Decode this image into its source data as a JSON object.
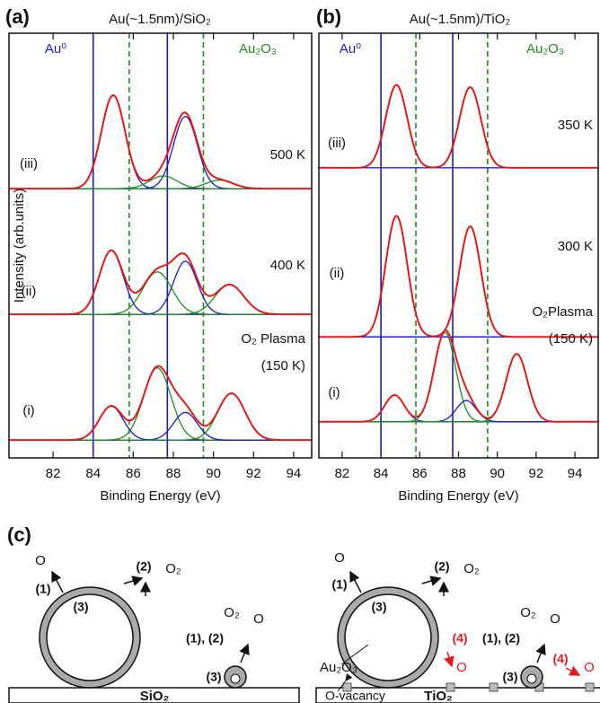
{
  "chart_data": [
    {
      "type": "xps",
      "panel": "(a)",
      "title": "Au(~1.5nm)/SiO₂",
      "x_label": "Binding Energy (eV)",
      "y_label": "Intensity (arb.units)",
      "xlim": [
        79.8,
        94.9
      ],
      "xticks": [
        82,
        84,
        86,
        88,
        90,
        92,
        94
      ],
      "ylim": [
        0,
        100
      ],
      "ref_lines": [
        {
          "label": "Au⁰",
          "color": "#1a1acc",
          "dashed": false,
          "positions": [
            84.0,
            87.7
          ]
        },
        {
          "label": "Au₂O₃",
          "color": "#1e8c1e",
          "dashed": true,
          "positions": [
            85.8,
            89.5
          ]
        }
      ],
      "fit_color": "#e01b1b",
      "series": [
        {
          "name": "(iii)",
          "annotation": [
            "500 K"
          ],
          "offset": 63.4,
          "components": [
            {
              "center": 85.0,
              "height": 22.0,
              "fwhm": 1.4,
              "color": "#1a1acc"
            },
            {
              "center": 88.6,
              "height": 17.0,
              "fwhm": 1.4,
              "color": "#1a1acc"
            },
            {
              "center": 87.5,
              "height": 3.0,
              "fwhm": 1.6,
              "color": "#1e8c1e"
            },
            {
              "center": 90.3,
              "height": 2.0,
              "fwhm": 1.6,
              "color": "#1e8c1e"
            }
          ]
        },
        {
          "name": "(ii)",
          "annotation": [
            "400 K"
          ],
          "offset": 33.8,
          "components": [
            {
              "center": 84.9,
              "height": 15.0,
              "fwhm": 1.4,
              "color": "#1a1acc"
            },
            {
              "center": 88.6,
              "height": 12.5,
              "fwhm": 1.4,
              "color": "#1a1acc"
            },
            {
              "center": 87.2,
              "height": 10.0,
              "fwhm": 1.7,
              "color": "#1e8c1e"
            },
            {
              "center": 90.8,
              "height": 7.0,
              "fwhm": 1.7,
              "color": "#1e8c1e"
            }
          ]
        },
        {
          "name": "(i)",
          "annotation": [
            "O₂ Plasma",
            "(150 K)"
          ],
          "offset": 4.2,
          "components": [
            {
              "center": 84.9,
              "height": 8.0,
              "fwhm": 1.4,
              "color": "#1a1acc"
            },
            {
              "center": 87.2,
              "height": 17.0,
              "fwhm": 1.6,
              "color": "#1e8c1e"
            },
            {
              "center": 88.6,
              "height": 6.5,
              "fwhm": 1.4,
              "color": "#1a1acc"
            },
            {
              "center": 90.9,
              "height": 11.0,
              "fwhm": 1.6,
              "color": "#1e8c1e"
            }
          ]
        }
      ]
    },
    {
      "type": "xps",
      "panel": "(b)",
      "title": "Au(~1.5nm)/TiO₂",
      "x_label": "Binding Energy (eV)",
      "xlim": [
        80.8,
        95.2
      ],
      "xticks": [
        82,
        84,
        86,
        88,
        90,
        92,
        94
      ],
      "ylim": [
        0,
        100
      ],
      "ref_lines": [
        {
          "label": "Au⁰",
          "color": "#1a1acc",
          "dashed": false,
          "positions": [
            84.0,
            87.7
          ]
        },
        {
          "label": "Au₂O₃",
          "color": "#1e8c1e",
          "dashed": true,
          "positions": [
            85.8,
            89.5
          ]
        }
      ],
      "fit_color": "#e01b1b",
      "series": [
        {
          "name": "(iii)",
          "annotation": [
            "350 K"
          ],
          "offset": 68.3,
          "components": [
            {
              "center": 84.8,
              "height": 19.5,
              "fwhm": 1.3,
              "color": "#1a1acc"
            },
            {
              "center": 88.6,
              "height": 19.0,
              "fwhm": 1.3,
              "color": "#1a1acc"
            }
          ]
        },
        {
          "name": "(ii)",
          "annotation": [
            "300 K"
          ],
          "offset": 28.5,
          "components": [
            {
              "center": 84.8,
              "height": 28.5,
              "fwhm": 1.3,
              "color": "#1a1acc"
            },
            {
              "center": 88.6,
              "height": 26.0,
              "fwhm": 1.3,
              "color": "#1a1acc"
            }
          ]
        },
        {
          "name": "(i)",
          "annotation": [
            "O₂Plasma",
            "(150 K)"
          ],
          "offset": 8.5,
          "components": [
            {
              "center": 84.7,
              "height": 6.3,
              "fwhm": 1.2,
              "color": "#1a1acc"
            },
            {
              "center": 87.3,
              "height": 21.0,
              "fwhm": 1.3,
              "color": "#1e8c1e"
            },
            {
              "center": 88.4,
              "height": 5.0,
              "fwhm": 1.2,
              "color": "#1a1acc"
            },
            {
              "center": 91.0,
              "height": 16.0,
              "fwhm": 1.3,
              "color": "#1e8c1e"
            }
          ]
        }
      ]
    }
  ],
  "diagram": {
    "label": "(c)",
    "left": {
      "labels": [
        "O",
        "(1)",
        "(2)",
        "O₂",
        "(3)",
        "O₂",
        "O",
        "(1), (2)",
        "(3)"
      ],
      "substrate": "SiO₂"
    },
    "right": {
      "labels": [
        "O",
        "(1)",
        "(2)",
        "O₂",
        "(3)",
        "Au₂O₃",
        "(4)",
        "O",
        "O₂",
        "O",
        "(1), (2)",
        "(3)",
        "(4)",
        "O"
      ],
      "vacancy": "O-vacancy",
      "substrate": "TiO₂"
    }
  }
}
